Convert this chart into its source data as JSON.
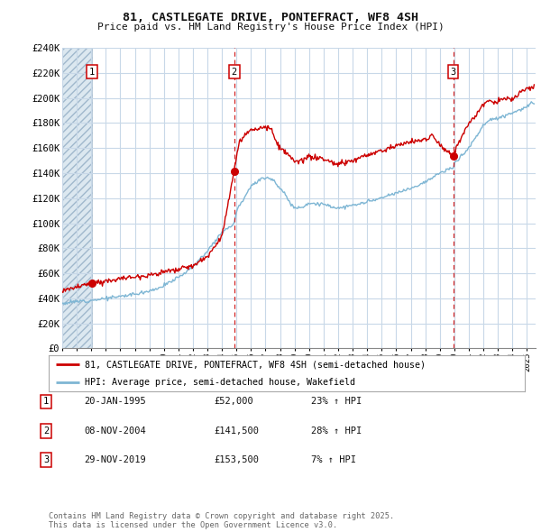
{
  "title": "81, CASTLEGATE DRIVE, PONTEFRACT, WF8 4SH",
  "subtitle": "Price paid vs. HM Land Registry's House Price Index (HPI)",
  "ylim": [
    0,
    240000
  ],
  "yticks": [
    0,
    20000,
    40000,
    60000,
    80000,
    100000,
    120000,
    140000,
    160000,
    180000,
    200000,
    220000,
    240000
  ],
  "ytick_labels": [
    "£0",
    "£20K",
    "£40K",
    "£60K",
    "£80K",
    "£100K",
    "£120K",
    "£140K",
    "£160K",
    "£180K",
    "£200K",
    "£220K",
    "£240K"
  ],
  "xlim_start": 1993.0,
  "xlim_end": 2025.6,
  "sale_dates": [
    1995.05,
    2004.85,
    2019.92
  ],
  "sale_prices": [
    52000,
    141500,
    153500
  ],
  "sale_labels": [
    "1",
    "2",
    "3"
  ],
  "sale_info": [
    {
      "num": "1",
      "date": "20-JAN-1995",
      "price": "£52,000",
      "hpi": "23% ↑ HPI"
    },
    {
      "num": "2",
      "date": "08-NOV-2004",
      "price": "£141,500",
      "hpi": "28% ↑ HPI"
    },
    {
      "num": "3",
      "date": "29-NOV-2019",
      "price": "£153,500",
      "hpi": "7% ↑ HPI"
    }
  ],
  "legend_line1": "81, CASTLEGATE DRIVE, PONTEFRACT, WF8 4SH (semi-detached house)",
  "legend_line2": "HPI: Average price, semi-detached house, Wakefield",
  "footer": "Contains HM Land Registry data © Crown copyright and database right 2025.\nThis data is licensed under the Open Government Licence v3.0.",
  "red_color": "#cc0000",
  "blue_color": "#7eb6d4",
  "bg_color": "#ffffff",
  "grid_color": "#c8d8e8",
  "hatch_bg": "#dce8f0"
}
